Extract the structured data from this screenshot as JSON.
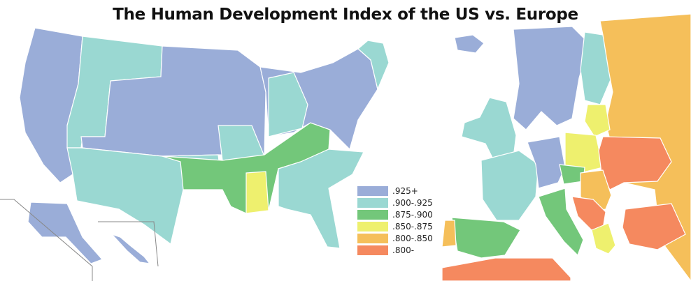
{
  "title": "The Human Development Index of the US vs. Europe",
  "legend": [
    {
      "label": ".925+",
      "color": "#9aadd8"
    },
    {
      "label": ".900-.925",
      "color": "#9ad8d2"
    },
    {
      "label": ".875-.900",
      "color": "#73c77a"
    },
    {
      "label": ".850-.875",
      "color": "#eef06e"
    },
    {
      "label": ".800-.850",
      "color": "#f5bf5a"
    },
    {
      "label": ".800-",
      "color": "#f5895f"
    }
  ],
  "colors": {
    "border": "#ffffff",
    "inset_line": "#888888"
  }
}
